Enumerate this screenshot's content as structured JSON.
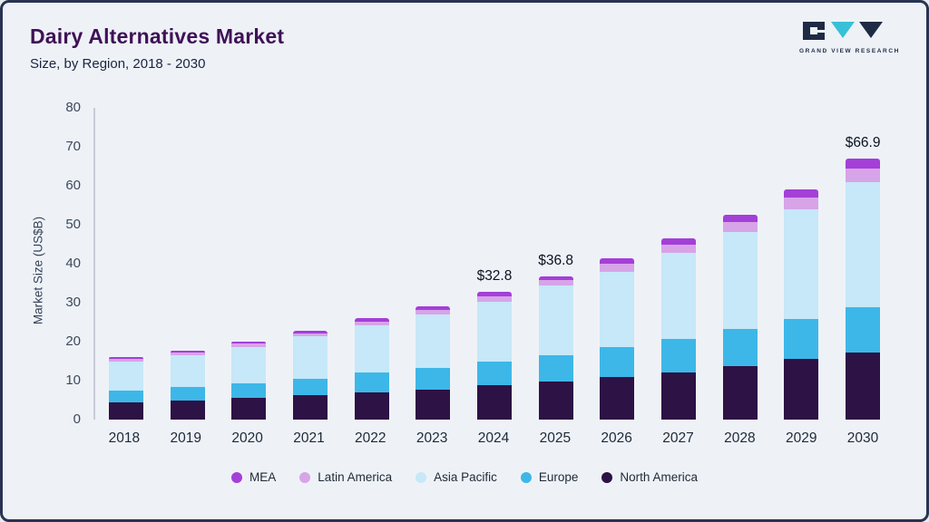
{
  "header": {
    "title": "Dairy Alternatives Market",
    "subtitle": "Size, by Region, 2018 - 2030",
    "logo_text": "GRAND VIEW RESEARCH"
  },
  "chart_data": {
    "type": "bar",
    "stacked": true,
    "title": "Dairy Alternatives Market Size, by Region, 2018 - 2030",
    "ylabel": "Market Size (US$B)",
    "ylim": [
      0,
      80
    ],
    "yticks": [
      0,
      10,
      20,
      30,
      40,
      50,
      60,
      70,
      80
    ],
    "grid": false,
    "legend_position": "bottom",
    "categories": [
      "2018",
      "2019",
      "2020",
      "2021",
      "2022",
      "2023",
      "2024",
      "2025",
      "2026",
      "2027",
      "2028",
      "2029",
      "2030"
    ],
    "series": [
      {
        "name": "North America",
        "color": "#2d1245",
        "values": [
          4.5,
          5.0,
          5.6,
          6.2,
          7.0,
          7.8,
          8.8,
          9.8,
          11.0,
          12.2,
          13.8,
          15.5,
          17.3
        ]
      },
      {
        "name": "Europe",
        "color": "#3db7e8",
        "values": [
          3.0,
          3.4,
          3.8,
          4.3,
          5.0,
          5.5,
          6.1,
          6.7,
          7.7,
          8.5,
          9.4,
          10.4,
          11.5
        ]
      },
      {
        "name": "Asia Pacific",
        "color": "#c6e8f8",
        "values": [
          7.3,
          8.2,
          9.3,
          10.8,
          12.2,
          13.8,
          15.4,
          18.0,
          19.3,
          22.0,
          25.0,
          28.0,
          32.2
        ]
      },
      {
        "name": "Latin America",
        "color": "#d7a4e8",
        "values": [
          0.7,
          0.7,
          0.8,
          0.9,
          1.0,
          1.1,
          1.4,
          1.3,
          2.0,
          2.2,
          2.6,
          3.1,
          3.5
        ]
      },
      {
        "name": "MEA",
        "color": "#a43fd8",
        "values": [
          0.5,
          0.5,
          0.6,
          0.7,
          0.8,
          0.9,
          1.1,
          1.0,
          1.5,
          1.6,
          1.8,
          2.1,
          2.4
        ]
      }
    ],
    "annotations": [
      {
        "category": "2024",
        "text": "$32.8"
      },
      {
        "category": "2025",
        "text": "$36.8"
      },
      {
        "category": "2030",
        "text": "$66.9"
      }
    ],
    "legend": [
      "MEA",
      "Latin America",
      "Asia Pacific",
      "Europe",
      "North America"
    ]
  }
}
